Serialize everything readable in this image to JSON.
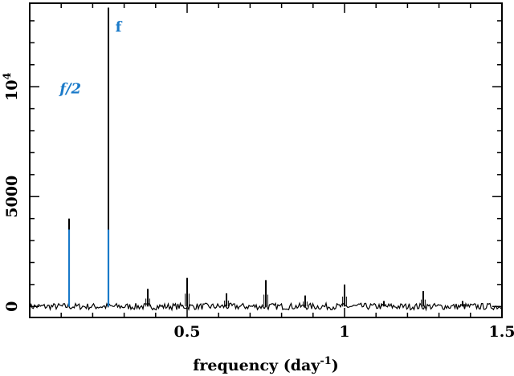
{
  "chart_data": {
    "type": "line",
    "title": "",
    "xlabel": "frequency  (day",
    "xlabel_sup": "-1",
    "xlabel_close": ")",
    "ylabel": "",
    "xlim": [
      0,
      1.5
    ],
    "ylim": [
      -500,
      13800
    ],
    "grid": false,
    "x_ticks": [
      {
        "value": 0.5,
        "label": "0.5"
      },
      {
        "value": 1.0,
        "label": "1"
      },
      {
        "value": 1.5,
        "label": "1.5"
      }
    ],
    "y_ticks": [
      {
        "value": 0,
        "label": "0"
      },
      {
        "value": 5000,
        "label": "5000"
      },
      {
        "value": 10000,
        "label": "10",
        "sup": "4"
      }
    ],
    "baseline_noise": 150,
    "series": [
      {
        "color": "#000000",
        "peaks": [
          {
            "x": 0.125,
            "y": 4000
          },
          {
            "x": 0.25,
            "y": 13600
          },
          {
            "x": 0.375,
            "y": 800
          },
          {
            "x": 0.5,
            "y": 1300
          },
          {
            "x": 0.625,
            "y": 600
          },
          {
            "x": 0.75,
            "y": 1200
          },
          {
            "x": 0.875,
            "y": 500
          },
          {
            "x": 1.0,
            "y": 1000
          },
          {
            "x": 1.125,
            "y": 250
          },
          {
            "x": 1.25,
            "y": 700
          },
          {
            "x": 1.375,
            "y": 250
          }
        ]
      },
      {
        "color": "#1a7ac9",
        "peaks": [
          {
            "x": 0.125,
            "y": 3500
          },
          {
            "x": 0.25,
            "y": 3500
          }
        ]
      }
    ],
    "annotations": [
      {
        "text": "f/2",
        "x": 0.095,
        "y": 9700,
        "color": "#1a7ac9"
      },
      {
        "text": "f",
        "x": 0.272,
        "y": 12500,
        "color": "#1a7ac9"
      }
    ]
  }
}
